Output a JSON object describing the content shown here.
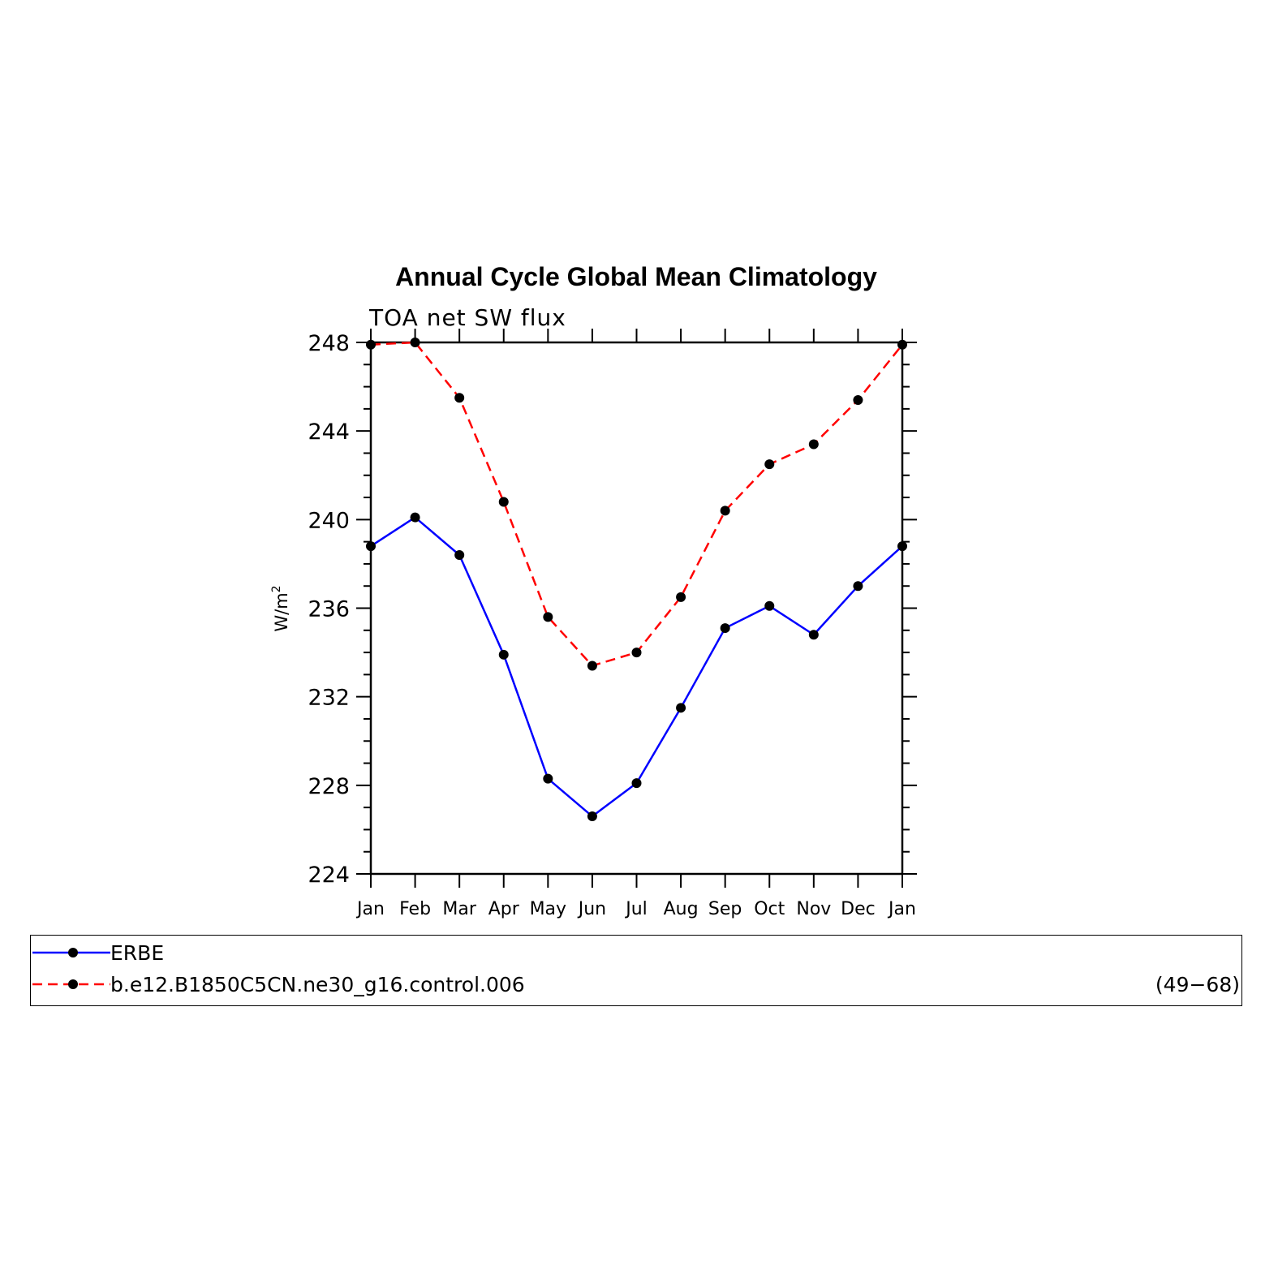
{
  "chart_data": {
    "type": "line",
    "title": "Annual Cycle Global Mean Climatology",
    "subtitle": "TOA net SW flux",
    "ylabel": "W/m",
    "ylabel_superscript": "2",
    "xlabel": "",
    "categories": [
      "Jan",
      "Feb",
      "Mar",
      "Apr",
      "May",
      "Jun",
      "Jul",
      "Aug",
      "Sep",
      "Oct",
      "Nov",
      "Dec",
      "Jan"
    ],
    "ylim": [
      224,
      248
    ],
    "yticks": [
      "224",
      "228",
      "232",
      "236",
      "240",
      "244",
      "248"
    ],
    "grid": false,
    "series": [
      {
        "name": "ERBE",
        "color": "#0000ff",
        "style": "solid",
        "values": [
          238.8,
          240.1,
          238.4,
          233.9,
          228.3,
          226.6,
          228.1,
          231.5,
          235.1,
          236.1,
          234.8,
          237.0,
          238.8
        ]
      },
      {
        "name": "b.e12.B1850C5CN.ne30_g16.control.006",
        "color": "#ff0000",
        "style": "dashed",
        "values": [
          247.9,
          248.0,
          245.5,
          240.8,
          235.6,
          233.4,
          234.0,
          236.5,
          240.4,
          242.5,
          243.4,
          245.4,
          247.9
        ]
      }
    ],
    "legend": {
      "position": "bottom",
      "entries": [
        "ERBE",
        "b.e12.B1850C5CN.ne30_g16.control.006"
      ],
      "years_label": "(49−68)"
    }
  }
}
